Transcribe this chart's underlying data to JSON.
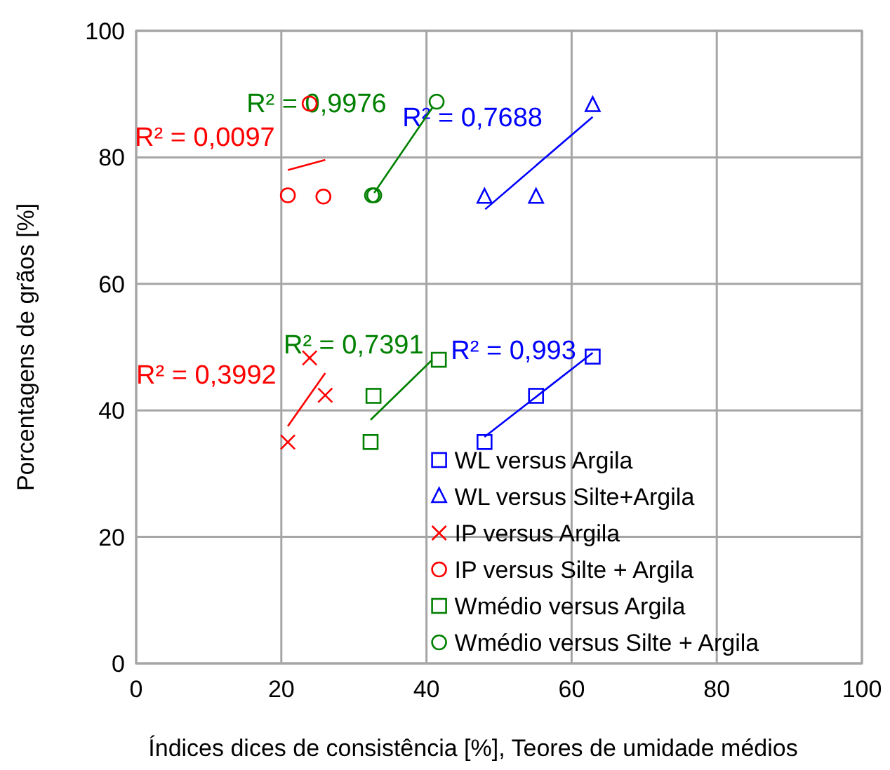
{
  "chart_data": {
    "type": "scatter",
    "xlabel": "Índices dices de consistência [%], Teores de umidade médios",
    "ylabel": "Porcentagens de grãos [%]",
    "xlim": [
      0,
      100
    ],
    "xticks": [
      0,
      20,
      40,
      60,
      80,
      100
    ],
    "ylim": [
      0,
      100
    ],
    "yticks": [
      0,
      20,
      40,
      60,
      80,
      100
    ],
    "grid": true,
    "legend": "bottom right",
    "series": [
      {
        "name": "WL versus Argila",
        "color": "#0000ff",
        "marker": "square",
        "x": [
          48,
          55.1,
          62.9
        ],
        "values": [
          35,
          42.3,
          48.5
        ]
      },
      {
        "name": "WL versus Silte+Argila",
        "color": "#0000ff",
        "marker": "triangle",
        "x": [
          48,
          55.1,
          62.9
        ],
        "values": [
          73.7,
          73.7,
          88.2
        ]
      },
      {
        "name": "IP versus Argila",
        "color": "#ff0000",
        "marker": "cross",
        "x": [
          20.9,
          23.9,
          26.05
        ],
        "values": [
          35,
          48.3,
          42.4
        ]
      },
      {
        "name": "IP versus Silte + Argila",
        "color": "#ff0000",
        "marker": "circle",
        "x": [
          20.9,
          23.9,
          25.8
        ],
        "values": [
          74,
          88.5,
          73.8
        ]
      },
      {
        "name": "Wmédio versus Argila",
        "color": "#008000",
        "marker": "square",
        "x": [
          32.3,
          32.7,
          41.7
        ],
        "values": [
          35,
          42.3,
          48
        ]
      },
      {
        "name": "Wmédio versus Silte + Argila",
        "color": "#008000",
        "marker": "circle",
        "x": [
          32.5,
          32.8,
          41.4
        ],
        "values": [
          74,
          74,
          88.8
        ]
      },
      {
        "type": "line",
        "color": "#ff0000",
        "marker": "none",
        "x": [
          20.9,
          26.05
        ],
        "values": [
          78,
          79.6
        ]
      },
      {
        "type": "line",
        "color": "#008000",
        "marker": "none",
        "x": [
          32.8,
          40.9
        ],
        "values": [
          74.4,
          88
        ]
      },
      {
        "type": "line",
        "color": "#0000ff",
        "marker": "none",
        "x": [
          48.1,
          62.9
        ],
        "values": [
          71.8,
          86.4
        ]
      },
      {
        "type": "line",
        "color": "#ff0000",
        "marker": "none",
        "x": [
          20.9,
          26.05
        ],
        "values": [
          37.5,
          45.9
        ]
      },
      {
        "type": "line",
        "color": "#008000",
        "marker": "none",
        "x": [
          32.3,
          40.8
        ],
        "values": [
          38.5,
          48
        ]
      },
      {
        "type": "line",
        "color": "#0000ff",
        "marker": "none",
        "x": [
          48,
          62.9
        ],
        "values": [
          35.8,
          49.1
        ]
      }
    ],
    "annotations": [
      "R² = 0,0097",
      "R² = 0,9976",
      "R² = 0,7688",
      "R² = 0,3992",
      "R² = 0,7391",
      "R² = 0,993"
    ]
  }
}
